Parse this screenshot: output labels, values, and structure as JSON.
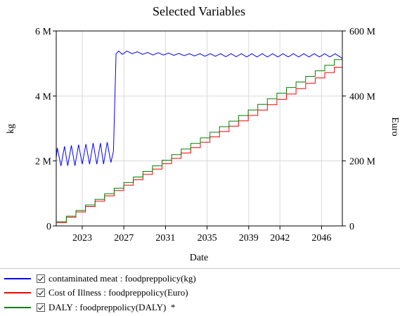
{
  "chart_data": {
    "type": "line",
    "title": "Selected Variables",
    "xlabel": "Date",
    "ylabel_left": "kg",
    "ylabel_right": "Euro",
    "xlim": [
      2020.5,
      2048.0
    ],
    "x_ticks": [
      "2023",
      "2027",
      "2031",
      "2035",
      "2039",
      "2042",
      "2046"
    ],
    "x_tick_values": [
      2023,
      2027,
      2031,
      2035,
      2039,
      2042,
      2046
    ],
    "ylim_left": [
      0,
      6000000
    ],
    "y_ticks_left": [
      "0",
      "2 M",
      "4 M",
      "6 M"
    ],
    "ylim_right": [
      0,
      600
    ],
    "y_ticks_right": [
      "0",
      "200 M",
      "400 M",
      "600 M"
    ],
    "grid": true,
    "series": [
      {
        "name": "contaminated meat : foodpreppolicy(kg)",
        "axis": "left",
        "color": "#0000ff",
        "points": [
          [
            2020.5,
            2100000.0
          ],
          [
            2020.6,
            2400000.0
          ],
          [
            2020.95,
            1850000.0
          ],
          [
            2021.3,
            2450000.0
          ],
          [
            2021.6,
            1850000.0
          ],
          [
            2021.95,
            2480000.0
          ],
          [
            2022.3,
            1850000.0
          ],
          [
            2022.65,
            2500000.0
          ],
          [
            2023.0,
            1900000.0
          ],
          [
            2023.35,
            2520000.0
          ],
          [
            2023.7,
            1900000.0
          ],
          [
            2024.05,
            2550000.0
          ],
          [
            2024.4,
            1900000.0
          ],
          [
            2024.75,
            2550000.0
          ],
          [
            2025.05,
            1900000.0
          ],
          [
            2025.4,
            2580000.0
          ],
          [
            2025.75,
            1950000.0
          ],
          [
            2026.0,
            2300000.0
          ],
          [
            2026.25,
            5300000.0
          ],
          [
            2026.5,
            5380000.0
          ],
          [
            2026.85,
            5280000.0
          ],
          [
            2027.3,
            5380000.0
          ],
          [
            2027.8,
            5300000.0
          ],
          [
            2028.3,
            5360000.0
          ],
          [
            2028.8,
            5280000.0
          ],
          [
            2029.3,
            5340000.0
          ],
          [
            2029.8,
            5260000.0
          ],
          [
            2030.3,
            5330000.0
          ],
          [
            2030.8,
            5260000.0
          ],
          [
            2031.3,
            5320000.0
          ],
          [
            2031.8,
            5250000.0
          ],
          [
            2032.3,
            5310000.0
          ],
          [
            2032.8,
            5240000.0
          ],
          [
            2033.3,
            5300000.0
          ],
          [
            2033.8,
            5230000.0
          ],
          [
            2034.3,
            5300000.0
          ],
          [
            2034.8,
            5220000.0
          ],
          [
            2035.3,
            5300000.0
          ],
          [
            2035.8,
            5220000.0
          ],
          [
            2036.3,
            5300000.0
          ],
          [
            2036.8,
            5210000.0
          ],
          [
            2037.3,
            5300000.0
          ],
          [
            2037.8,
            5210000.0
          ],
          [
            2038.3,
            5300000.0
          ],
          [
            2038.8,
            5200000.0
          ],
          [
            2039.3,
            5300000.0
          ],
          [
            2039.8,
            5200000.0
          ],
          [
            2040.3,
            5300000.0
          ],
          [
            2040.8,
            5200000.0
          ],
          [
            2041.3,
            5300000.0
          ],
          [
            2041.8,
            5200000.0
          ],
          [
            2042.3,
            5300000.0
          ],
          [
            2042.8,
            5200000.0
          ],
          [
            2043.3,
            5300000.0
          ],
          [
            2043.8,
            5200000.0
          ],
          [
            2044.3,
            5300000.0
          ],
          [
            2044.8,
            5200000.0
          ],
          [
            2045.3,
            5300000.0
          ],
          [
            2045.8,
            5200000.0
          ],
          [
            2046.3,
            5300000.0
          ],
          [
            2046.8,
            5200000.0
          ],
          [
            2047.3,
            5300000.0
          ],
          [
            2047.8,
            5200000.0
          ],
          [
            2048.0,
            5150000.0
          ]
        ]
      },
      {
        "name": "Cost of Illness : foodpreppolicy(Euro)",
        "axis": "right",
        "color": "#ff0000",
        "step": true,
        "x_start": 2020.55,
        "x_step": 0.92,
        "y_start": 10,
        "y_increment": 16.5,
        "x_end": 2048.0
      },
      {
        "name": "DALY : foodpreppolicy(DALY)  *",
        "axis": "right",
        "color": "#008000",
        "step": true,
        "x_start": 2020.55,
        "x_step": 0.92,
        "y_start": 13,
        "y_increment": 17.2,
        "x_end": 2048.0
      }
    ]
  }
}
